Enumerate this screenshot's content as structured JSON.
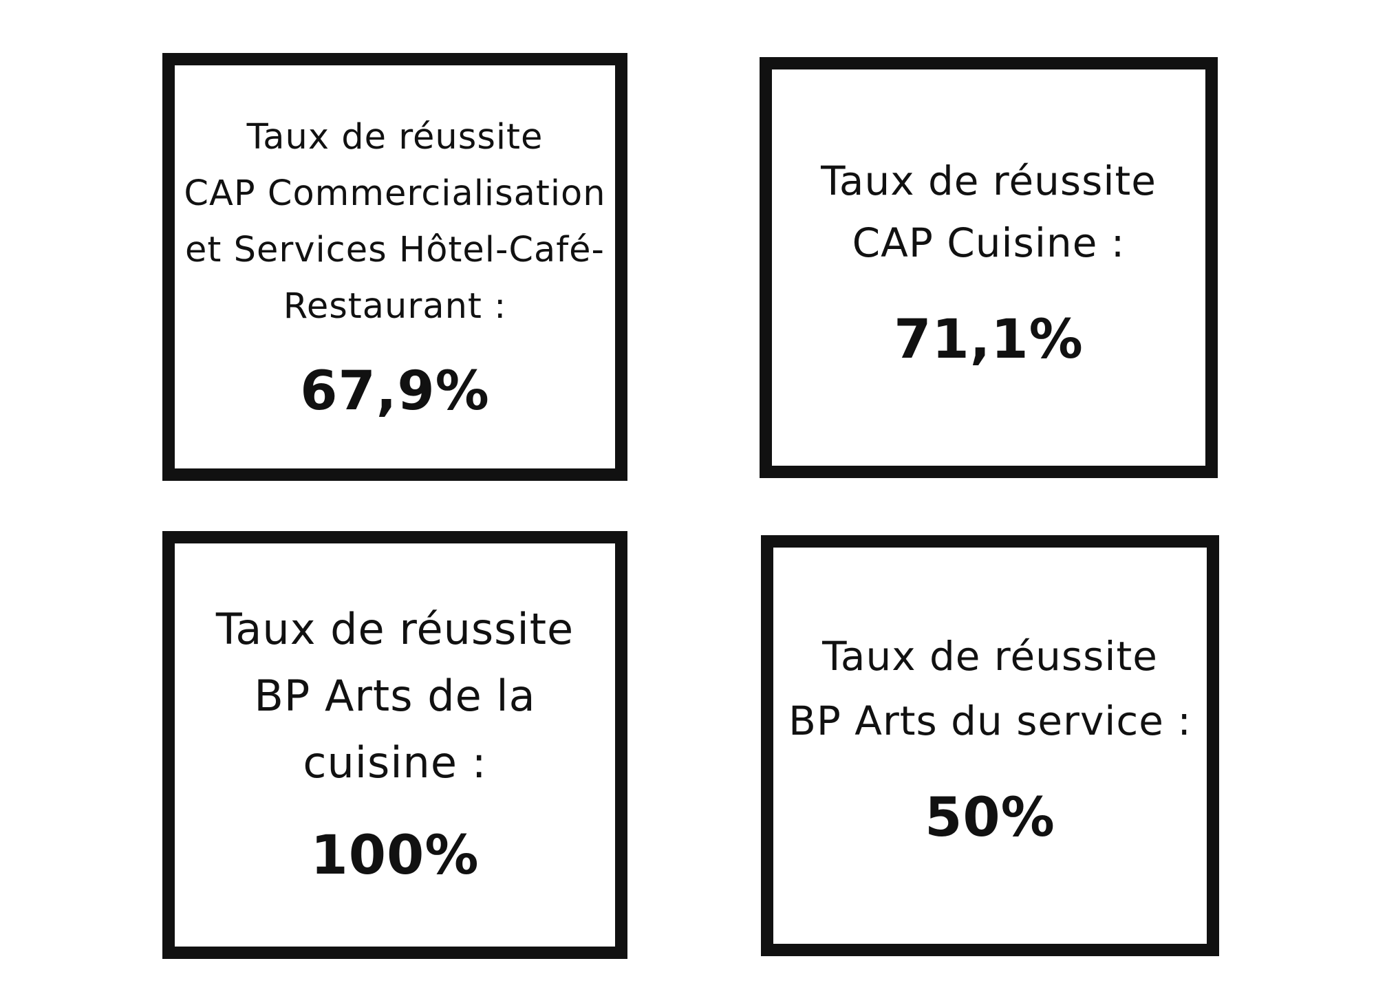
{
  "cards": [
    {
      "label": "Taux de réussite\nCAP Commercialisation\net Services Hôtel-Café-\nRestaurant :",
      "value": "67,9%"
    },
    {
      "label": "Taux de réussite\nCAP Cuisine :",
      "value": "71,1%"
    },
    {
      "label": "Taux de réussite\nBP Arts de la\ncuisine :",
      "value": "100%"
    },
    {
      "label": "Taux de réussite\nBP Arts du service :",
      "value": "50%"
    }
  ],
  "colors": {
    "border": "#111111",
    "background": "#ffffff",
    "text": "#111111"
  }
}
